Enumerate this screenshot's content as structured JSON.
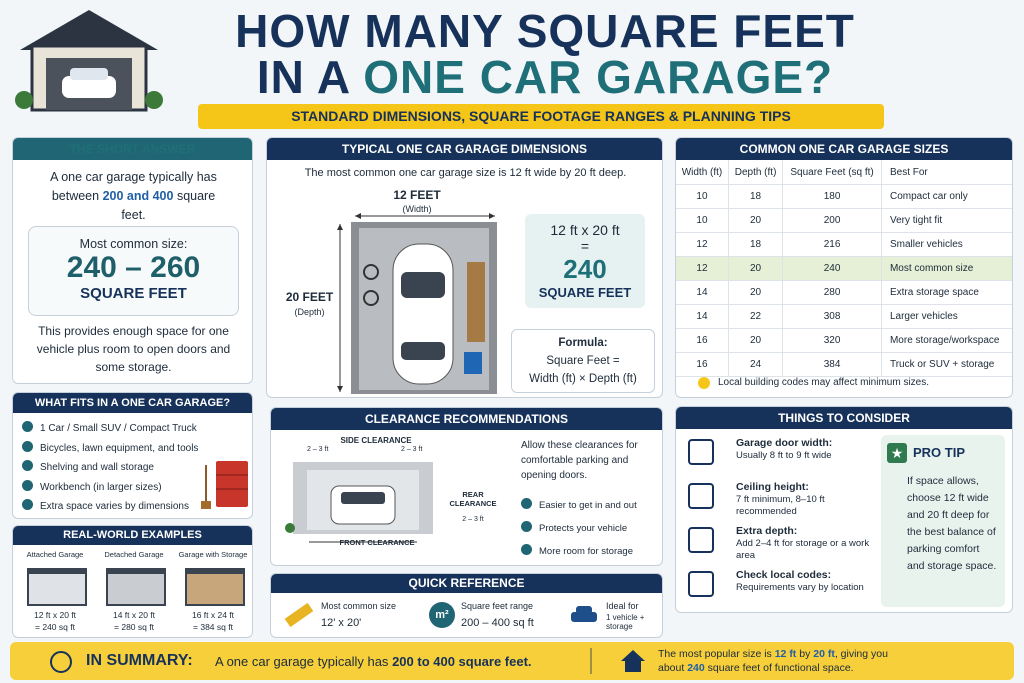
{
  "header": {
    "title_line1": "HOW MANY SQUARE FEET",
    "title_line2a": "IN A",
    "title_line2b": "ONE CAR GARAGE?",
    "subtitle": "STANDARD DIMENSIONS, SQUARE FOOTAGE RANGES & PLANNING TIPS"
  },
  "short_answer": {
    "title": "THE SHORT ANSWER",
    "text_before": "A one car garage typically has between",
    "highlight": "200 and 400",
    "text_after": "square feet.",
    "common_label": "Most common size:",
    "common_value": "240 – 260",
    "common_unit": "SQUARE FEET",
    "footer": "This provides enough space for one vehicle plus room to open doors and some storage."
  },
  "what_fits": {
    "title": "WHAT FITS IN A ONE CAR GARAGE?",
    "items": [
      "1 Car / Small SUV / Compact Truck",
      "Bicycles, lawn equipment, and tools",
      "Shelving and wall storage",
      "Workbench (in larger sizes)",
      "Extra space varies by dimensions"
    ]
  },
  "real_world": {
    "title": "REAL-WORLD EXAMPLES",
    "examples": [
      {
        "label": "Attached Garage",
        "size": "12 ft x 20 ft",
        "area": "= 240 sq ft"
      },
      {
        "label": "Detached Garage",
        "size": "14 ft x 20 ft",
        "area": "= 280 sq ft"
      },
      {
        "label": "Garage with Storage",
        "size": "16 ft x 24 ft",
        "area": "= 384 sq ft"
      }
    ]
  },
  "dimensions": {
    "title": "TYPICAL ONE CAR GARAGE DIMENSIONS",
    "intro": "The most common one car garage size is 12 ft wide by 20 ft deep.",
    "width_label": "12 FEET",
    "width_sub": "(Width)",
    "depth_label": "20 FEET",
    "depth_sub": "(Depth)",
    "equation": "12 ft x 20 ft",
    "equals": "=",
    "result": "240",
    "result_unit": "SQUARE FEET",
    "formula_title": "Formula:",
    "formula_line1": "Square Feet =",
    "formula_line2": "Width (ft) × Depth (ft)"
  },
  "clearance": {
    "title": "CLEARANCE RECOMMENDATIONS",
    "side": "SIDE CLEARANCE",
    "side_range": "2 – 3 ft",
    "rear": "REAR CLEARANCE",
    "rear_range": "2 – 3 ft",
    "front": "FRONT CLEARANCE",
    "intro": "Allow these clearances for comfortable parking and opening doors.",
    "items": [
      "Easier to get in and out",
      "Protects your vehicle",
      "More room for storage"
    ]
  },
  "quick_ref": {
    "title": "QUICK REFERENCE",
    "icon_text": "m²",
    "items": [
      {
        "label": "Most common size",
        "value": "12' x 20'"
      },
      {
        "label": "Square feet range",
        "value": "200 – 400 sq ft"
      },
      {
        "label": "Ideal for",
        "value": "1 vehicle + storage"
      }
    ]
  },
  "sizes": {
    "title": "COMMON ONE CAR GARAGE SIZES",
    "headers": [
      "Width (ft)",
      "Depth (ft)",
      "Square Feet (sq ft)",
      "Best For"
    ],
    "rows": [
      [
        "10",
        "18",
        "180",
        "Compact car only"
      ],
      [
        "10",
        "20",
        "200",
        "Very tight fit"
      ],
      [
        "12",
        "18",
        "216",
        "Smaller vehicles"
      ],
      [
        "12",
        "20",
        "240",
        "Most common size"
      ],
      [
        "14",
        "20",
        "280",
        "Extra storage space"
      ],
      [
        "14",
        "22",
        "308",
        "Larger vehicles"
      ],
      [
        "16",
        "20",
        "320",
        "More storage/workspace"
      ],
      [
        "16",
        "24",
        "384",
        "Truck or SUV + storage"
      ]
    ],
    "highlight_row": 3,
    "note": "Local building codes may affect minimum sizes."
  },
  "things": {
    "title": "THINGS TO CONSIDER",
    "items": [
      {
        "title": "Garage door width:",
        "text": "Usually 8 ft to 9 ft wide"
      },
      {
        "title": "Ceiling height:",
        "text": "7 ft minimum, 8–10 ft recommended"
      },
      {
        "title": "Extra depth:",
        "text": "Add 2–4 ft for storage or a work area"
      },
      {
        "title": "Check local codes:",
        "text": "Requirements vary by location"
      }
    ],
    "pro_tip_title": "PRO TIP",
    "pro_tip_text": "If space allows, choose 12 ft wide and 20 ft deep for the best balance of parking comfort and storage space."
  },
  "summary": {
    "label": "IN SUMMARY:",
    "text_before": "A one car garage typically has",
    "highlight": "200 to 400 square feet.",
    "segments": [
      {
        "text": "The most popular size is ",
        "bold": false
      },
      {
        "text": "12 ft",
        "bold": true
      },
      {
        "text": " by ",
        "bold": false
      },
      {
        "text": "20 ft",
        "bold": true
      },
      {
        "text": ", giving you about ",
        "bold": false
      },
      {
        "text": "240",
        "bold": true
      },
      {
        "text": " square feet of functional space.",
        "bold": false
      }
    ]
  }
}
